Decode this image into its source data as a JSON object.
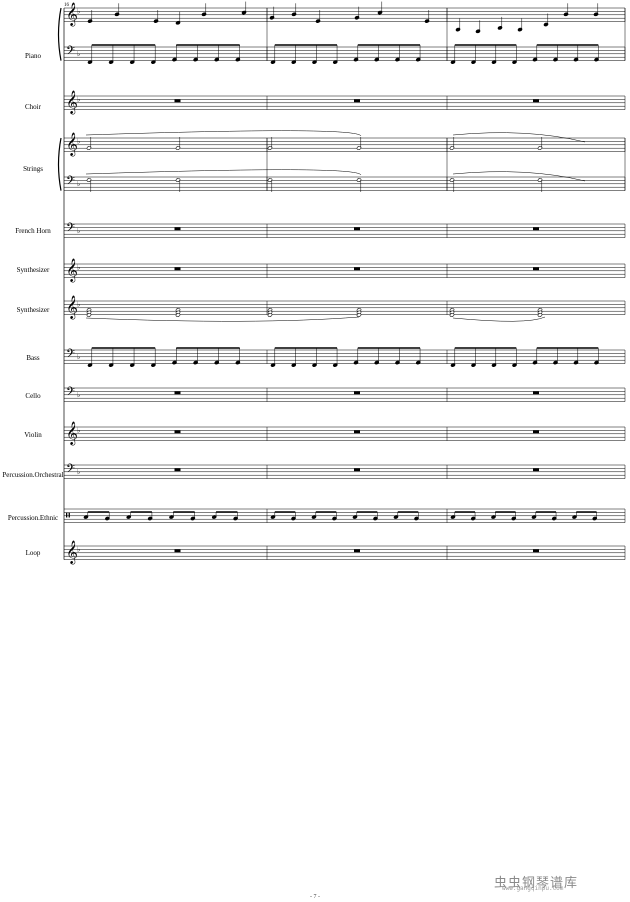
{
  "measure_number": "16",
  "page_number": "- 7 -",
  "watermark": {
    "text": "虫虫钢琴谱库",
    "url": "www.gangqinpu.com"
  },
  "score": {
    "clef_symbols": {
      "treble": "𝄞",
      "bass": "𝄢",
      "percussion": "𝄥"
    },
    "rest_symbol": "𝄻",
    "measures": 3,
    "instruments": [
      {
        "name": "Piano",
        "staves": [
          "treble",
          "bass"
        ],
        "content": "notes"
      },
      {
        "name": "Choir",
        "staves": [
          "treble"
        ],
        "content": "rest"
      },
      {
        "name": "Strings",
        "staves": [
          "treble",
          "bass"
        ],
        "content": "half-notes"
      },
      {
        "name": "French Horn",
        "staves": [
          "bass"
        ],
        "content": "rest"
      },
      {
        "name": "Synthesizer",
        "staves": [
          "treble"
        ],
        "content": "rest"
      },
      {
        "name": "Synthesizer",
        "staves": [
          "treble"
        ],
        "content": "chords"
      },
      {
        "name": "Bass",
        "staves": [
          "bass"
        ],
        "content": "eighths"
      },
      {
        "name": "Cello",
        "staves": [
          "bass"
        ],
        "content": "rest"
      },
      {
        "name": "Violin",
        "staves": [
          "treble"
        ],
        "content": "rest"
      },
      {
        "name": "Percussion.Orchestral",
        "staves": [
          "bass"
        ],
        "content": "rest"
      },
      {
        "name": "Percussion.Ethnic",
        "staves": [
          "percussion"
        ],
        "content": "perc"
      },
      {
        "name": "Loop",
        "staves": [
          "treble"
        ],
        "content": "rest"
      }
    ]
  }
}
